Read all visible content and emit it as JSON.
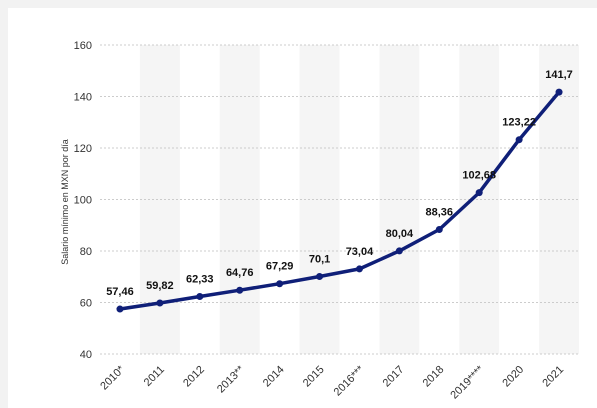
{
  "chart_data": {
    "type": "line",
    "title": "",
    "xlabel": "",
    "ylabel": "Salario mínimo en MXN por día",
    "ylim": [
      40,
      160
    ],
    "yticks": [
      "40",
      "60",
      "80",
      "100",
      "120",
      "140",
      "160"
    ],
    "grid": true,
    "categories": [
      "2010*",
      "2011",
      "2012",
      "2013**",
      "2014",
      "2015",
      "2016***",
      "2017",
      "2018",
      "2019****",
      "2020",
      "2021"
    ],
    "values": [
      57.46,
      59.82,
      62.33,
      64.76,
      67.29,
      70.1,
      73.04,
      80.04,
      88.36,
      102.68,
      123.22,
      141.7
    ],
    "value_labels": [
      "57,46",
      "59,82",
      "62,33",
      "64,76",
      "67,29",
      "70,1",
      "73,04",
      "80,04",
      "88,36",
      "102,68",
      "123,22",
      "141,7"
    ],
    "series_color": "#0f1f78",
    "band_color": "#f5f5f5",
    "grid_color": "#cccccc"
  }
}
